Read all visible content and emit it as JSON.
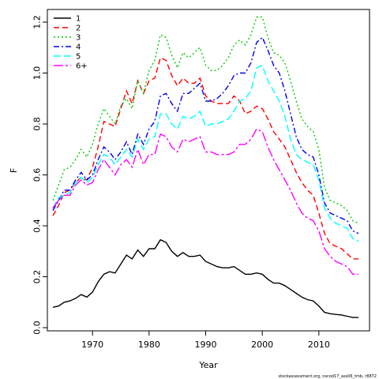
{
  "chart_data": {
    "type": "line",
    "title": "",
    "xlabel": "Year",
    "ylabel": "F",
    "xlim": [
      1962,
      2018
    ],
    "ylim": [
      0,
      1.25
    ],
    "xticks": [
      1970,
      1980,
      1990,
      2000,
      2010
    ],
    "yticks": [
      0.0,
      0.2,
      0.4,
      0.6,
      0.8,
      1.0,
      1.2
    ],
    "ytick_labels": [
      "0.0",
      "0.2",
      "0.4",
      "0.6",
      "0.8",
      "1.0",
      "1.2"
    ],
    "grid": false,
    "legend_position": "top-left",
    "credit": "stockassessment.org, nscod17_ass06_tmb, r8872",
    "x": [
      1963,
      1964,
      1965,
      1966,
      1967,
      1968,
      1969,
      1970,
      1971,
      1972,
      1973,
      1974,
      1975,
      1976,
      1977,
      1978,
      1979,
      1980,
      1981,
      1982,
      1983,
      1984,
      1985,
      1986,
      1987,
      1988,
      1989,
      1990,
      1991,
      1992,
      1993,
      1994,
      1995,
      1996,
      1997,
      1998,
      1999,
      2000,
      2001,
      2002,
      2003,
      2004,
      2005,
      2006,
      2007,
      2008,
      2009,
      2010,
      2011,
      2012,
      2013,
      2014,
      2015,
      2016,
      2017
    ],
    "series": [
      {
        "name": "1",
        "color": "#000000",
        "dash": "solid",
        "values": [
          0.08,
          0.085,
          0.1,
          0.105,
          0.115,
          0.13,
          0.12,
          0.14,
          0.18,
          0.21,
          0.22,
          0.215,
          0.25,
          0.285,
          0.27,
          0.305,
          0.28,
          0.31,
          0.31,
          0.345,
          0.335,
          0.3,
          0.28,
          0.295,
          0.28,
          0.28,
          0.285,
          0.26,
          0.25,
          0.24,
          0.235,
          0.235,
          0.24,
          0.225,
          0.21,
          0.21,
          0.215,
          0.21,
          0.19,
          0.175,
          0.175,
          0.165,
          0.15,
          0.135,
          0.12,
          0.11,
          0.105,
          0.085,
          0.06,
          0.055,
          0.052,
          0.05,
          0.045,
          0.04,
          0.04
        ]
      },
      {
        "name": "2",
        "color": "#ff0000",
        "dash": "7,4",
        "values": [
          0.44,
          0.48,
          0.53,
          0.54,
          0.57,
          0.59,
          0.58,
          0.63,
          0.71,
          0.81,
          0.8,
          0.79,
          0.86,
          0.93,
          0.88,
          0.97,
          0.92,
          0.97,
          0.98,
          1.06,
          1.05,
          0.99,
          0.95,
          0.98,
          0.96,
          0.96,
          0.98,
          0.91,
          0.89,
          0.88,
          0.88,
          0.88,
          0.91,
          0.89,
          0.84,
          0.85,
          0.87,
          0.86,
          0.82,
          0.77,
          0.74,
          0.71,
          0.66,
          0.61,
          0.57,
          0.54,
          0.52,
          0.45,
          0.37,
          0.33,
          0.32,
          0.31,
          0.29,
          0.27,
          0.27
        ]
      },
      {
        "name": "3",
        "color": "#00cc00",
        "dash": "2,3",
        "values": [
          0.5,
          0.56,
          0.62,
          0.63,
          0.66,
          0.7,
          0.67,
          0.72,
          0.8,
          0.86,
          0.83,
          0.8,
          0.87,
          0.9,
          0.86,
          0.97,
          0.92,
          1.01,
          1.05,
          1.15,
          1.14,
          1.07,
          1.02,
          1.08,
          1.06,
          1.08,
          1.1,
          1.03,
          1.01,
          1.01,
          1.03,
          1.06,
          1.11,
          1.13,
          1.11,
          1.15,
          1.22,
          1.22,
          1.14,
          1.08,
          1.07,
          1.04,
          0.97,
          0.89,
          0.82,
          0.79,
          0.77,
          0.7,
          0.55,
          0.5,
          0.49,
          0.48,
          0.46,
          0.42,
          0.41
        ]
      },
      {
        "name": "4",
        "color": "#0000ee",
        "dash": "7,3,2,3",
        "values": [
          0.46,
          0.5,
          0.54,
          0.54,
          0.58,
          0.61,
          0.58,
          0.6,
          0.66,
          0.71,
          0.69,
          0.66,
          0.69,
          0.73,
          0.68,
          0.76,
          0.72,
          0.78,
          0.81,
          0.91,
          0.92,
          0.88,
          0.85,
          0.92,
          0.92,
          0.94,
          0.96,
          0.89,
          0.89,
          0.9,
          0.92,
          0.95,
          0.99,
          1.0,
          1.0,
          1.04,
          1.12,
          1.14,
          1.09,
          1.03,
          1.0,
          0.93,
          0.84,
          0.75,
          0.7,
          0.68,
          0.67,
          0.6,
          0.49,
          0.45,
          0.44,
          0.43,
          0.42,
          0.38,
          0.37
        ]
      },
      {
        "name": "5",
        "color": "#00ffff",
        "dash": "9,4",
        "values": [
          0.47,
          0.51,
          0.52,
          0.53,
          0.57,
          0.59,
          0.57,
          0.59,
          0.64,
          0.68,
          0.67,
          0.64,
          0.67,
          0.7,
          0.67,
          0.74,
          0.7,
          0.74,
          0.75,
          0.84,
          0.84,
          0.8,
          0.78,
          0.83,
          0.82,
          0.83,
          0.85,
          0.79,
          0.8,
          0.8,
          0.81,
          0.82,
          0.85,
          0.89,
          0.9,
          0.93,
          1.02,
          1.03,
          0.97,
          0.93,
          0.89,
          0.83,
          0.74,
          0.68,
          0.66,
          0.65,
          0.64,
          0.58,
          0.47,
          0.43,
          0.41,
          0.4,
          0.39,
          0.35,
          0.34
        ]
      },
      {
        "name": "6+",
        "color": "#ff00ff",
        "dash": "12,3,3,3",
        "values": [
          0.47,
          0.5,
          0.52,
          0.52,
          0.56,
          0.58,
          0.56,
          0.57,
          0.62,
          0.66,
          0.63,
          0.6,
          0.64,
          0.66,
          0.63,
          0.7,
          0.64,
          0.68,
          0.68,
          0.76,
          0.75,
          0.71,
          0.69,
          0.74,
          0.73,
          0.74,
          0.75,
          0.69,
          0.69,
          0.68,
          0.68,
          0.68,
          0.69,
          0.72,
          0.72,
          0.74,
          0.78,
          0.77,
          0.71,
          0.66,
          0.62,
          0.58,
          0.54,
          0.49,
          0.45,
          0.43,
          0.42,
          0.38,
          0.31,
          0.28,
          0.26,
          0.25,
          0.24,
          0.21,
          0.21
        ]
      }
    ]
  }
}
